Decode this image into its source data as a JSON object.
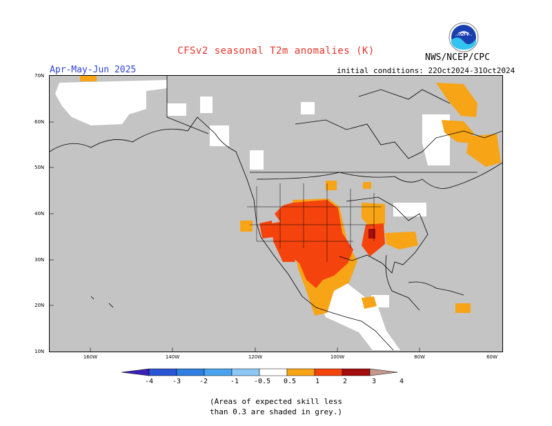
{
  "header": {
    "title": "CFSv2 seasonal T2m anomalies (K)",
    "period": "Apr-May-Jun 2025",
    "initial_conditions": "initial conditions: 22Oct2024-31Oct2024",
    "agency": "NWS/NCEP/CPC"
  },
  "colors": {
    "title": "#e8322a",
    "period": "#2b3fd6",
    "low_skill_grey": "#c4c4c4",
    "anom_0_5_to_1": "#f7a416",
    "anom_1_to_2": "#f5430e",
    "anom_2_to_3": "#a30d0d",
    "anom_3_to_4": "#c49a8e"
  },
  "map": {
    "lat_ticks": [
      "70N",
      "60N",
      "50N",
      "40N",
      "30N",
      "20N",
      "10N"
    ],
    "lon_ticks": [
      "160W",
      "140W",
      "120W",
      "100W",
      "80W",
      "60W"
    ]
  },
  "colorbar": {
    "labels": [
      "-4",
      "-3",
      "-2",
      "-1",
      "-0.5",
      "0.5",
      "1",
      "2",
      "3",
      "4"
    ],
    "colors": [
      "#3a22b8",
      "#2c55d6",
      "#2f7ee0",
      "#4aa3ee",
      "#8cc8f6",
      "#ffffff",
      "#f7a416",
      "#f5430e",
      "#a30d0d",
      "#c49a8e"
    ]
  },
  "note": {
    "line1": "(Areas of expected skill less",
    "line2": "than 0.3 are shaded in grey.)"
  }
}
